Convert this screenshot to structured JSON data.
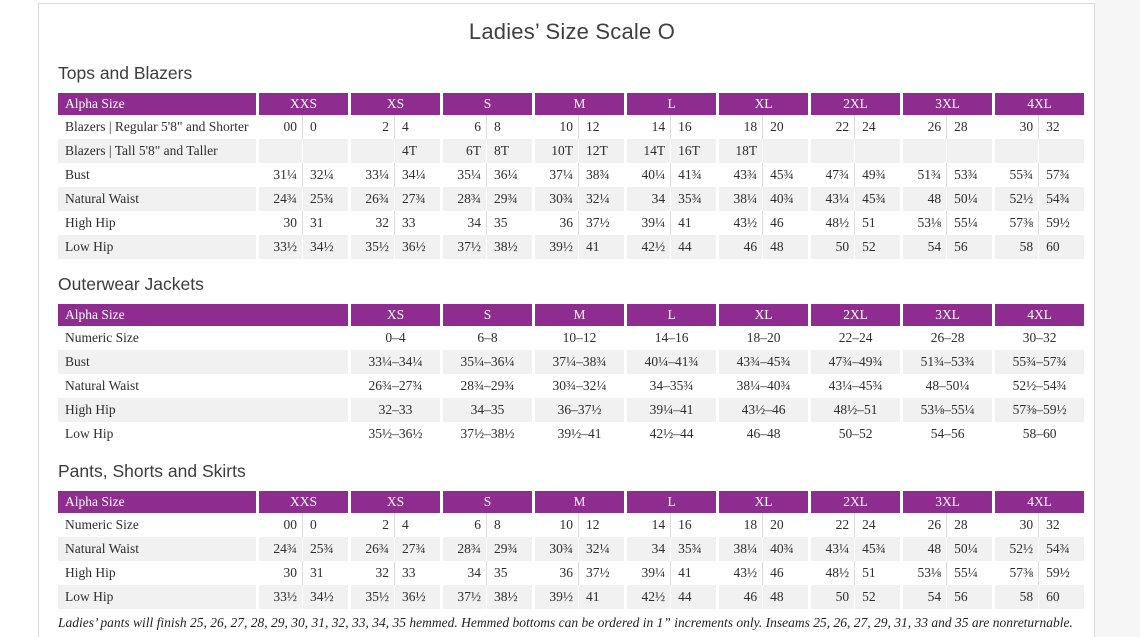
{
  "page": {
    "title": "Ladies’ Size Scale O",
    "footnote": "Ladies’ pants will finish 25, 26, 27, 28, 29, 30, 31, 32, 33, 34, 35 hemmed. Hemmed bottoms can be ordered in 1” increments only. Inseams 25, 26, 27, 29, 31, 33 and 35 are nonreturnable."
  },
  "colors": {
    "accent_purple": "#8e2c8f",
    "stripe_gray": "#f1f1f1",
    "page_border": "#d8d8d8"
  },
  "tables": [
    {
      "heading": "Tops and Blazers",
      "header_label": "Alpha Size",
      "split": true,
      "columns": [
        "XXS",
        "XS",
        "S",
        "M",
        "L",
        "XL",
        "2XL",
        "3XL",
        "4XL"
      ],
      "rows": [
        {
          "label": "Blazers | Regular 5'8\" and Shorter",
          "cells": [
            [
              "00",
              "0"
            ],
            [
              "2",
              "4"
            ],
            [
              "6",
              "8"
            ],
            [
              "10",
              "12"
            ],
            [
              "14",
              "16"
            ],
            [
              "18",
              "20"
            ],
            [
              "22",
              "24"
            ],
            [
              "26",
              "28"
            ],
            [
              "30",
              "32"
            ]
          ]
        },
        {
          "label": "Blazers | Tall 5'8\" and Taller",
          "cells": [
            [
              "",
              ""
            ],
            [
              "",
              "4T"
            ],
            [
              "6T",
              "8T"
            ],
            [
              "10T",
              "12T"
            ],
            [
              "14T",
              "16T"
            ],
            [
              "18T",
              ""
            ],
            [
              "",
              ""
            ],
            [
              "",
              ""
            ],
            [
              "",
              ""
            ]
          ]
        },
        {
          "label": "Bust",
          "cells": [
            [
              "31¼",
              "32¼"
            ],
            [
              "33¼",
              "34¼"
            ],
            [
              "35¼",
              "36¼"
            ],
            [
              "37¼",
              "38¾"
            ],
            [
              "40¼",
              "41¾"
            ],
            [
              "43¾",
              "45¾"
            ],
            [
              "47¾",
              "49¾"
            ],
            [
              "51¾",
              "53¾"
            ],
            [
              "55¾",
              "57¾"
            ]
          ]
        },
        {
          "label": "Natural Waist",
          "cells": [
            [
              "24¾",
              "25¾"
            ],
            [
              "26¾",
              "27¾"
            ],
            [
              "28¾",
              "29¾"
            ],
            [
              "30¾",
              "32¼"
            ],
            [
              "34",
              "35¾"
            ],
            [
              "38¼",
              "40¾"
            ],
            [
              "43¼",
              "45¾"
            ],
            [
              "48",
              "50¼"
            ],
            [
              "52½",
              "54¾"
            ]
          ]
        },
        {
          "label": "High Hip",
          "cells": [
            [
              "30",
              "31"
            ],
            [
              "32",
              "33"
            ],
            [
              "34",
              "35"
            ],
            [
              "36",
              "37½"
            ],
            [
              "39¼",
              "41"
            ],
            [
              "43½",
              "46"
            ],
            [
              "48½",
              "51"
            ],
            [
              "53⅛",
              "55¼"
            ],
            [
              "57⅜",
              "59½"
            ]
          ]
        },
        {
          "label": "Low Hip",
          "cells": [
            [
              "33½",
              "34½"
            ],
            [
              "35½",
              "36½"
            ],
            [
              "37½",
              "38½"
            ],
            [
              "39½",
              "41"
            ],
            [
              "42½",
              "44"
            ],
            [
              "46",
              "48"
            ],
            [
              "50",
              "52"
            ],
            [
              "54",
              "56"
            ],
            [
              "58",
              "60"
            ]
          ]
        }
      ]
    },
    {
      "heading": "Outerwear Jackets",
      "header_label": "Alpha Size",
      "split": false,
      "columns": [
        "XS",
        "S",
        "M",
        "L",
        "XL",
        "2XL",
        "3XL",
        "4XL"
      ],
      "rows": [
        {
          "label": "Numeric Size",
          "cells": [
            "0–4",
            "6–8",
            "10–12",
            "14–16",
            "18–20",
            "22–24",
            "26–28",
            "30–32"
          ]
        },
        {
          "label": "Bust",
          "cells": [
            "33¼–34¼",
            "35¼–36¼",
            "37¼–38¾",
            "40¼–41¾",
            "43¾–45¾",
            "47¾–49¾",
            "51¾–53¾",
            "55¾–57¾"
          ]
        },
        {
          "label": "Natural Waist",
          "cells": [
            "26¾–27¾",
            "28¾–29¾",
            "30¾–32¼",
            "34–35¾",
            "38¼–40¾",
            "43¼–45¾",
            "48–50¼",
            "52½–54¾"
          ]
        },
        {
          "label": "High Hip",
          "cells": [
            "32–33",
            "34–35",
            "36–37½",
            "39¼–41",
            "43½–46",
            "48½–51",
            "53⅛–55¼",
            "57⅜–59½"
          ]
        },
        {
          "label": "Low Hip",
          "cells": [
            "35½–36½",
            "37½–38½",
            "39½–41",
            "42½–44",
            "46–48",
            "50–52",
            "54–56",
            "58–60"
          ]
        }
      ]
    },
    {
      "heading": "Pants, Shorts and Skirts",
      "header_label": "Alpha Size",
      "split": true,
      "columns": [
        "XXS",
        "XS",
        "S",
        "M",
        "L",
        "XL",
        "2XL",
        "3XL",
        "4XL"
      ],
      "rows": [
        {
          "label": "Numeric Size",
          "cells": [
            [
              "00",
              "0"
            ],
            [
              "2",
              "4"
            ],
            [
              "6",
              "8"
            ],
            [
              "10",
              "12"
            ],
            [
              "14",
              "16"
            ],
            [
              "18",
              "20"
            ],
            [
              "22",
              "24"
            ],
            [
              "26",
              "28"
            ],
            [
              "30",
              "32"
            ]
          ]
        },
        {
          "label": "Natural Waist",
          "cells": [
            [
              "24¾",
              "25¾"
            ],
            [
              "26¾",
              "27¾"
            ],
            [
              "28¾",
              "29¾"
            ],
            [
              "30¾",
              "32¼"
            ],
            [
              "34",
              "35¾"
            ],
            [
              "38¼",
              "40¾"
            ],
            [
              "43¼",
              "45¾"
            ],
            [
              "48",
              "50¼"
            ],
            [
              "52½",
              "54¾"
            ]
          ]
        },
        {
          "label": "High Hip",
          "cells": [
            [
              "30",
              "31"
            ],
            [
              "32",
              "33"
            ],
            [
              "34",
              "35"
            ],
            [
              "36",
              "37½"
            ],
            [
              "39¼",
              "41"
            ],
            [
              "43½",
              "46"
            ],
            [
              "48½",
              "51"
            ],
            [
              "53⅛",
              "55¼"
            ],
            [
              "57⅜",
              "59½"
            ]
          ]
        },
        {
          "label": "Low Hip",
          "cells": [
            [
              "33½",
              "34½"
            ],
            [
              "35½",
              "36½"
            ],
            [
              "37½",
              "38½"
            ],
            [
              "39½",
              "41"
            ],
            [
              "42½",
              "44"
            ],
            [
              "46",
              "48"
            ],
            [
              "50",
              "52"
            ],
            [
              "54",
              "56"
            ],
            [
              "58",
              "60"
            ]
          ]
        }
      ]
    }
  ]
}
